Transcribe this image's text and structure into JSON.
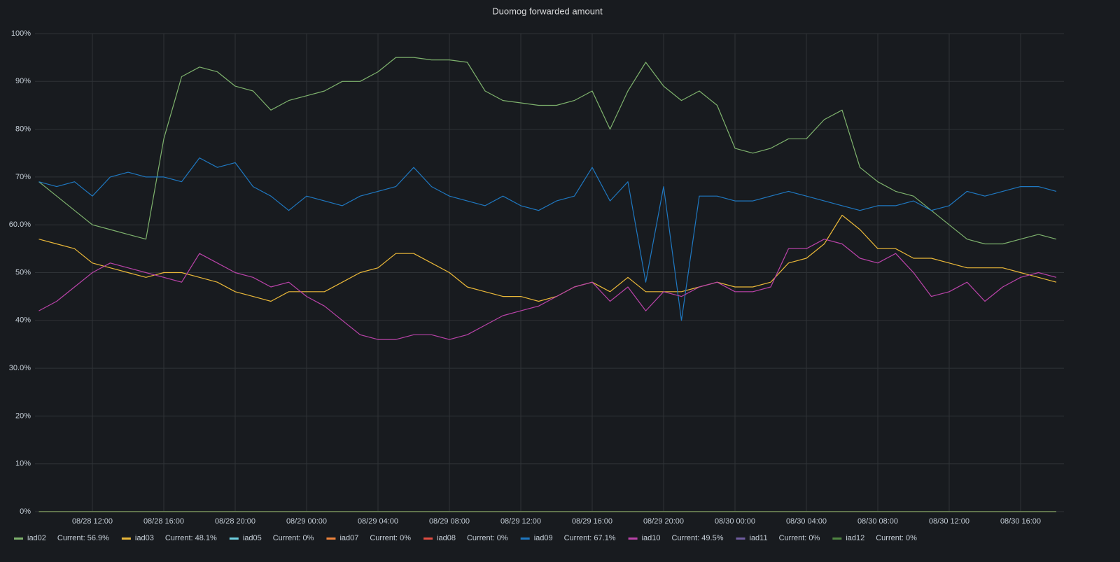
{
  "chart_data": {
    "type": "line",
    "title": "Duomog forwarded amount",
    "categories": [
      null,
      null,
      null,
      "08/28 12:00",
      null,
      null,
      null,
      "08/28 16:00",
      null,
      null,
      null,
      "08/28 20:00",
      null,
      null,
      null,
      "08/29 00:00",
      null,
      null,
      null,
      "08/29 04:00",
      null,
      null,
      null,
      "08/29 08:00",
      null,
      null,
      null,
      "08/29 12:00",
      null,
      null,
      null,
      "08/29 16:00",
      null,
      null,
      null,
      "08/29 20:00",
      null,
      null,
      null,
      "08/30 00:00",
      null,
      null,
      null,
      "08/30 04:00",
      null,
      null,
      null,
      "08/30 08:00",
      null,
      null,
      null,
      "08/30 12:00",
      null,
      null,
      null,
      "08/30 16:00",
      null,
      null
    ],
    "ylim": [
      0,
      100
    ],
    "yticks": [
      {
        "value": 0,
        "label": "0%"
      },
      {
        "value": 10,
        "label": "10%"
      },
      {
        "value": 20,
        "label": "20%"
      },
      {
        "value": 30,
        "label": "30.0%"
      },
      {
        "value": 40,
        "label": "40%"
      },
      {
        "value": 50,
        "label": "50%"
      },
      {
        "value": 60,
        "label": "60.0%"
      },
      {
        "value": 70,
        "label": "70%"
      },
      {
        "value": 80,
        "label": "80%"
      },
      {
        "value": 90,
        "label": "90%"
      },
      {
        "value": 100,
        "label": "100%"
      }
    ],
    "grid": true,
    "series": [
      {
        "name": "iad02",
        "color": "#7EB26D",
        "current": "Current: 56.9%",
        "values": [
          69,
          66,
          63,
          60,
          59,
          58,
          57,
          78,
          91,
          93,
          92,
          89,
          88,
          84,
          86,
          87,
          88,
          90,
          90,
          92,
          95,
          95,
          94.5,
          94.5,
          94,
          88,
          86,
          85.5,
          85,
          85,
          86,
          88,
          80,
          88,
          94,
          89,
          86,
          88,
          85,
          76,
          75,
          76,
          78,
          78,
          82,
          84,
          72,
          69,
          67,
          66,
          63,
          60,
          57,
          56,
          56,
          57,
          58,
          57
        ]
      },
      {
        "name": "iad03",
        "color": "#EAB839",
        "current": "Current: 48.1%",
        "values": [
          57,
          56,
          55,
          52,
          51,
          50,
          49,
          50,
          50,
          49,
          48,
          46,
          45,
          44,
          46,
          46,
          46,
          48,
          50,
          51,
          54,
          54,
          52,
          50,
          47,
          46,
          45,
          45,
          44,
          45,
          47,
          48,
          46,
          49,
          46,
          46,
          46,
          47,
          48,
          47,
          47,
          48,
          52,
          53,
          56,
          62,
          59,
          55,
          55,
          53,
          53,
          52,
          51,
          51,
          51,
          50,
          49,
          48
        ]
      },
      {
        "name": "iad05",
        "color": "#6ED0E0",
        "current": "Current: 0%",
        "values": [
          0,
          0,
          0,
          0,
          0,
          0,
          0,
          0,
          0,
          0,
          0,
          0,
          0,
          0,
          0,
          0,
          0,
          0,
          0,
          0,
          0,
          0,
          0,
          0,
          0,
          0,
          0,
          0,
          0,
          0,
          0,
          0,
          0,
          0,
          0,
          0,
          0,
          0,
          0,
          0,
          0,
          0,
          0,
          0,
          0,
          0,
          0,
          0,
          0,
          0,
          0,
          0,
          0,
          0,
          0,
          0,
          0,
          0
        ]
      },
      {
        "name": "iad07",
        "color": "#EF843C",
        "current": "Current: 0%",
        "values": [
          0,
          0,
          0,
          0,
          0,
          0,
          0,
          0,
          0,
          0,
          0,
          0,
          0,
          0,
          0,
          0,
          0,
          0,
          0,
          0,
          0,
          0,
          0,
          0,
          0,
          0,
          0,
          0,
          0,
          0,
          0,
          0,
          0,
          0,
          0,
          0,
          0,
          0,
          0,
          0,
          0,
          0,
          0,
          0,
          0,
          0,
          0,
          0,
          0,
          0,
          0,
          0,
          0,
          0,
          0,
          0,
          0,
          0
        ]
      },
      {
        "name": "iad08",
        "color": "#E24D42",
        "current": "Current: 0%",
        "values": [
          0,
          0,
          0,
          0,
          0,
          0,
          0,
          0,
          0,
          0,
          0,
          0,
          0,
          0,
          0,
          0,
          0,
          0,
          0,
          0,
          0,
          0,
          0,
          0,
          0,
          0,
          0,
          0,
          0,
          0,
          0,
          0,
          0,
          0,
          0,
          0,
          0,
          0,
          0,
          0,
          0,
          0,
          0,
          0,
          0,
          0,
          0,
          0,
          0,
          0,
          0,
          0,
          0,
          0,
          0,
          0,
          0,
          0
        ]
      },
      {
        "name": "iad09",
        "color": "#1F78C1",
        "current": "Current: 67.1%",
        "values": [
          69,
          68,
          69,
          66,
          70,
          71,
          70,
          70,
          69,
          74,
          72,
          73,
          68,
          66,
          63,
          66,
          65,
          64,
          66,
          67,
          68,
          72,
          68,
          66,
          65,
          64,
          66,
          64,
          63,
          65,
          66,
          72,
          65,
          69,
          48,
          68,
          40,
          66,
          66,
          65,
          65,
          66,
          67,
          66,
          65,
          64,
          63,
          64,
          64,
          65,
          63,
          64,
          67,
          66,
          67,
          68,
          68,
          67
        ]
      },
      {
        "name": "iad10",
        "color": "#BA43A9",
        "current": "Current: 49.5%",
        "values": [
          42,
          44,
          47,
          50,
          52,
          51,
          50,
          49,
          48,
          54,
          52,
          50,
          49,
          47,
          48,
          45,
          43,
          40,
          37,
          36,
          36,
          37,
          37,
          36,
          37,
          39,
          41,
          42,
          43,
          45,
          47,
          48,
          44,
          47,
          42,
          46,
          45,
          47,
          48,
          46,
          46,
          47,
          55,
          55,
          57,
          56,
          53,
          52,
          54,
          50,
          45,
          46,
          48,
          44,
          47,
          49,
          50,
          49
        ]
      },
      {
        "name": "iad11",
        "color": "#705DA0",
        "current": "Current: 0%",
        "values": [
          0,
          0,
          0,
          0,
          0,
          0,
          0,
          0,
          0,
          0,
          0,
          0,
          0,
          0,
          0,
          0,
          0,
          0,
          0,
          0,
          0,
          0,
          0,
          0,
          0,
          0,
          0,
          0,
          0,
          0,
          0,
          0,
          0,
          0,
          0,
          0,
          0,
          0,
          0,
          0,
          0,
          0,
          0,
          0,
          0,
          0,
          0,
          0,
          0,
          0,
          0,
          0,
          0,
          0,
          0,
          0,
          0,
          0
        ]
      },
      {
        "name": "iad12",
        "color": "#508642",
        "current": "Current: 0%",
        "values": [
          0,
          0,
          0,
          0,
          0,
          0,
          0,
          0,
          0,
          0,
          0,
          0,
          0,
          0,
          0,
          0,
          0,
          0,
          0,
          0,
          0,
          0,
          0,
          0,
          0,
          0,
          0,
          0,
          0,
          0,
          0,
          0,
          0,
          0,
          0,
          0,
          0,
          0,
          0,
          0,
          0,
          0,
          0,
          0,
          0,
          0,
          0,
          0,
          0,
          0,
          0,
          0,
          0,
          0,
          0,
          0,
          0,
          0
        ]
      }
    ]
  }
}
